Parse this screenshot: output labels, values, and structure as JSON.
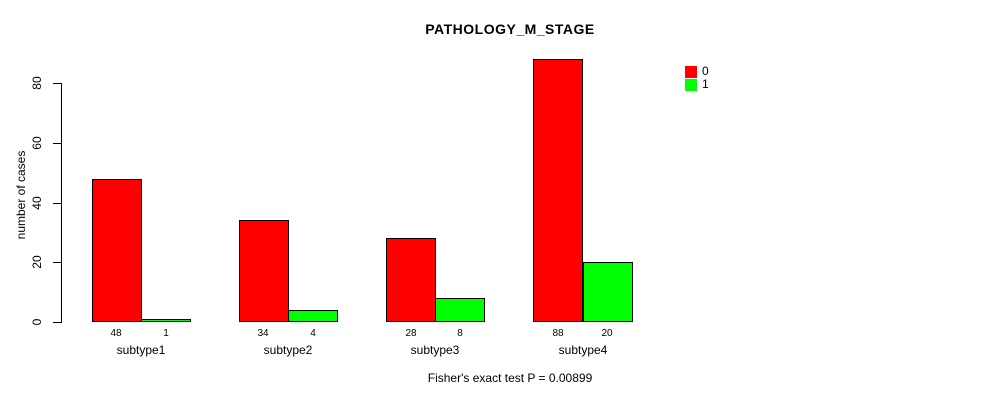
{
  "chart_data": {
    "type": "bar",
    "grouped": true,
    "title": "PATHOLOGY_M_STAGE",
    "ylabel": "number of cases",
    "xlabel": "",
    "categories": [
      "subtype1",
      "subtype2",
      "subtype3",
      "subtype4"
    ],
    "series": [
      {
        "name": "0",
        "color": "#ff0000",
        "values": [
          48,
          34,
          28,
          88
        ]
      },
      {
        "name": "1",
        "color": "#00ff00",
        "values": [
          1,
          4,
          8,
          20
        ]
      }
    ],
    "yticks": [
      0,
      20,
      40,
      60,
      80
    ],
    "ylim": [
      0,
      88
    ],
    "grid": false,
    "legend": {
      "position": "top-right",
      "entries": [
        "0",
        "1"
      ]
    },
    "annotation": "Fisher's exact test P = 0.00899",
    "colors": {
      "bar_border": "#000000",
      "text": "#000000",
      "background": "#ffffff"
    }
  }
}
